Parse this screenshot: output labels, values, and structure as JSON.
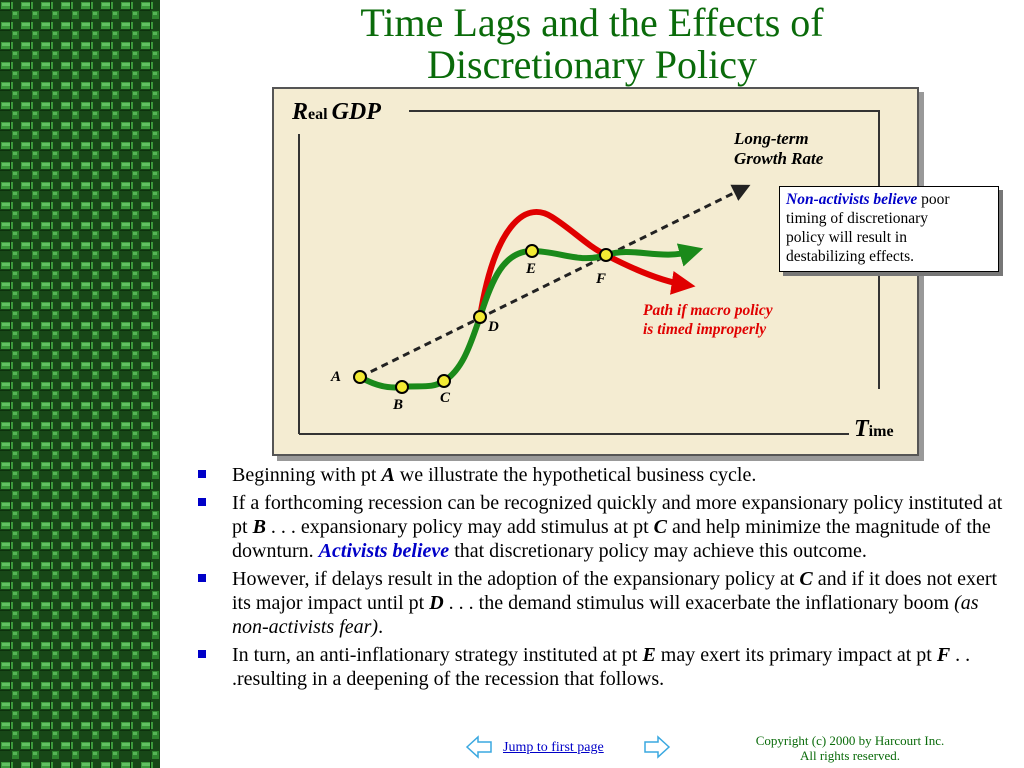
{
  "slide": {
    "title_line1": "Time Lags and the Effects of",
    "title_line2": "Discretionary Policy"
  },
  "diagram": {
    "y_axis_label_cap": "R",
    "y_axis_label_rest": "eal",
    "y_axis_label_word": "GDP",
    "x_axis_label_cap": "T",
    "x_axis_label_rest": "ime",
    "trend_label_line1": "Long-term",
    "trend_label_line2": "Growth Rate",
    "improper_path_label_line1": "Path if macro policy",
    "improper_path_label_line2": "is timed improperly",
    "points": [
      "A",
      "B",
      "C",
      "D",
      "E",
      "F"
    ],
    "colors": {
      "proper_path": "#1a8a1a",
      "improper_path": "#e00000",
      "trend": "#222222",
      "point_fill": "#f2ea33"
    }
  },
  "callout": {
    "emphasis": "Non-activists believe",
    "text_line1": "poor",
    "text_line2": "timing of discretionary",
    "text_line3": "policy will result in",
    "text_line4": "destabilizing effects."
  },
  "bullets": {
    "b1": {
      "t1": "Beginning with pt",
      "pt1": "A",
      "t2": "we illustrate the hypothetical business cycle."
    },
    "b2": {
      "t1": "If a forthcoming recession can be recognized quickly and more expansionary policy instituted at pt",
      "pt1": "B",
      "t2": ". . . expansionary policy may add stimulus at pt",
      "pt2": "C",
      "t3": "and help minimize the magnitude of the downturn.",
      "blue": "Activists believe",
      "t4": "that discretionary policy may achieve this outcome."
    },
    "b3": {
      "t1": "However, if delays result in the adoption of the expansionary policy at",
      "pt1": "C",
      "t2": "and if it does not exert its major impact until pt",
      "pt2": "D",
      "t3": ". . . the demand stimulus will exacerbate the inflationary boom",
      "ital": "(as non-activists fear)",
      "t4": "."
    },
    "b4": {
      "t1": "In turn, an anti-inflationary strategy instituted at pt",
      "pt1": "E",
      "t2": "may exert its primary impact at pt",
      "pt2": "F",
      "t3": ". . .resulting in a deepening of the recession that follows."
    }
  },
  "nav": {
    "jump_label": "Jump to first page",
    "prev_icon": "arrow-left-outline-icon",
    "next_icon": "arrow-right-outline-icon"
  },
  "footer": {
    "copyright_line1": "Copyright (c) 2000 by Harcourt Inc.",
    "copyright_line2": "All rights reserved."
  }
}
